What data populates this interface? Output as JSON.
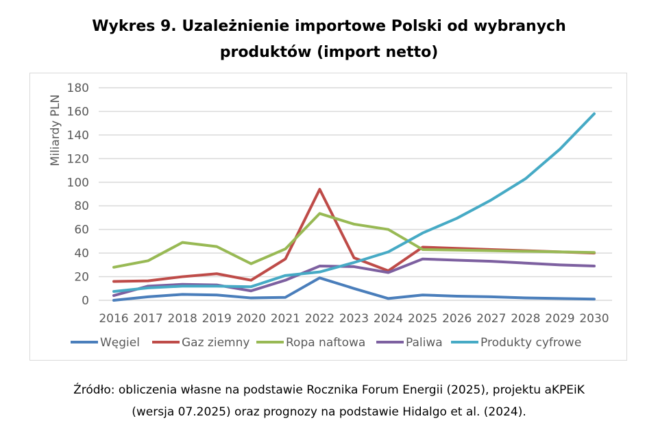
{
  "title_line1": "Wykres 9. Uzależnienie importowe Polski od wybranych",
  "title_line2": "produktów (import netto)",
  "source_line1": "Źródło: obliczenia własne na podstawie Rocznika Forum Energii (2025), projektu aKPEiK",
  "source_line2": "(wersja 07.2025) oraz prognozy na podstawie Hidalgo et al. (2024).",
  "chart_data": {
    "type": "line",
    "title": "Wykres 9. Uzależnienie importowe Polski od wybranych produktów (import netto)",
    "xlabel": "",
    "ylabel": "Miliardy PLN",
    "ylim": [
      0,
      180
    ],
    "yticks": [
      0,
      20,
      40,
      60,
      80,
      100,
      120,
      140,
      160,
      180
    ],
    "grid": true,
    "legend": "bottom",
    "categories": [
      "2016",
      "2017",
      "2018",
      "2019",
      "2020",
      "2021",
      "2022",
      "2023",
      "2024",
      "2025",
      "2026",
      "2027",
      "2028",
      "2029",
      "2030"
    ],
    "series": [
      {
        "name": "Węgiel",
        "color": "#4a7ebb",
        "values": [
          0,
          3,
          5,
          4.5,
          2,
          2.5,
          19,
          10,
          1.5,
          4.5,
          3.5,
          3,
          2,
          1.5,
          1
        ]
      },
      {
        "name": "Gaz ziemny",
        "color": "#be4b48",
        "values": [
          16,
          16.5,
          20,
          22.5,
          17,
          35,
          94,
          36,
          25,
          45,
          44,
          43,
          42,
          41,
          40
        ]
      },
      {
        "name": "Ropa naftowa",
        "color": "#98b954",
        "values": [
          28,
          33.5,
          49,
          45.5,
          31,
          43.5,
          73.5,
          64.5,
          60,
          43,
          42.5,
          42,
          41.5,
          41,
          40.5
        ]
      },
      {
        "name": "Paliwa",
        "color": "#7d60a0",
        "values": [
          4,
          12,
          13.5,
          13,
          8,
          17,
          29,
          28.5,
          23.5,
          35,
          34,
          33,
          31.5,
          30,
          29
        ]
      },
      {
        "name": "Produkty cyfrowe",
        "color": "#46aac5",
        "values": [
          7.5,
          10.5,
          12,
          12,
          11.5,
          21,
          24,
          32,
          41,
          57,
          69.5,
          85,
          103,
          128,
          158
        ]
      }
    ]
  }
}
